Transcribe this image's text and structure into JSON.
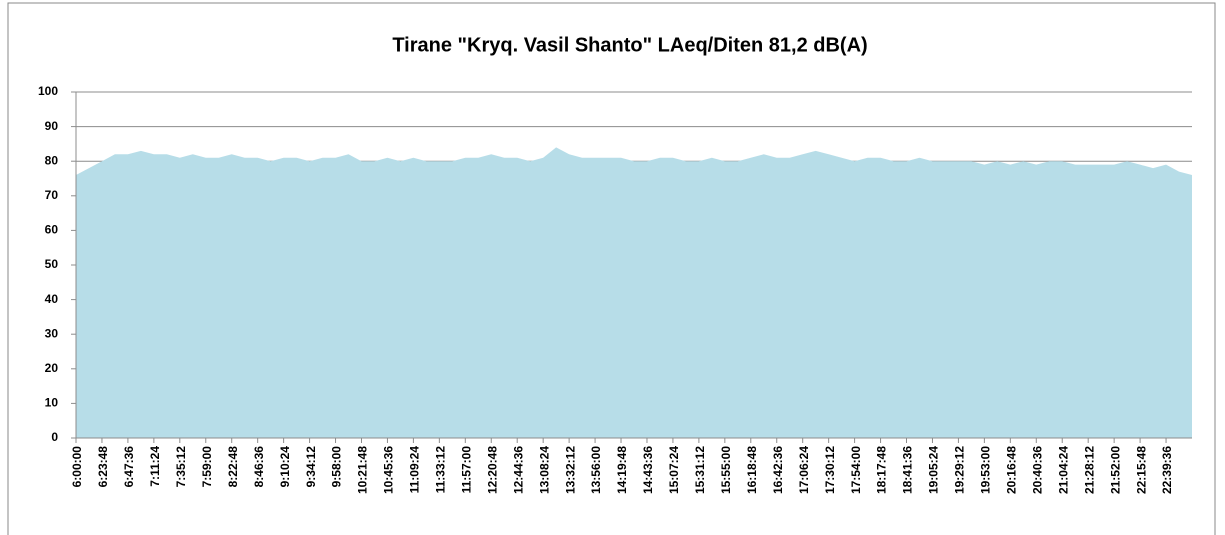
{
  "chart_data": {
    "type": "area",
    "title": "Tirane \"Kryq. Vasil Shanto\" LAeq/Diten 81,2 dB(A)",
    "categories": [
      "6:00:00",
      null,
      "6:23:48",
      null,
      "6:47:36",
      null,
      "7:11:24",
      null,
      "7:35:12",
      null,
      "7:59:00",
      null,
      "8:22:48",
      null,
      "8:46:36",
      null,
      "9:10:24",
      null,
      "9:34:12",
      null,
      "9:58:00",
      null,
      "10:21:48",
      null,
      "10:45:36",
      null,
      "11:09:24",
      null,
      "11:33:12",
      null,
      "11:57:00",
      null,
      "12:20:48",
      null,
      "12:44:36",
      null,
      "13:08:24",
      null,
      "13:32:12",
      null,
      "13:56:00",
      null,
      "14:19:48",
      null,
      "14:43:36",
      null,
      "15:07:24",
      null,
      "15:31:12",
      null,
      "15:55:00",
      null,
      "16:18:48",
      null,
      "16:42:36",
      null,
      "17:06:24",
      null,
      "17:30:12",
      null,
      "17:54:00",
      null,
      "18:17:48",
      null,
      "18:41:36",
      null,
      "19:05:24",
      null,
      "19:29:12",
      null,
      "19:53:00",
      null,
      "20:16:48",
      null,
      "20:40:36",
      null,
      "21:04:24",
      null,
      "21:28:12",
      null,
      "21:52:00",
      null,
      "22:15:48",
      null,
      "22:39:36",
      null,
      null
    ],
    "values": [
      76,
      78,
      80,
      82,
      82,
      83,
      82,
      82,
      81,
      82,
      81,
      81,
      82,
      81,
      81,
      80,
      81,
      81,
      80,
      81,
      81,
      82,
      80,
      80,
      81,
      80,
      81,
      80,
      80,
      80,
      81,
      81,
      82,
      81,
      81,
      80,
      81,
      84,
      82,
      81,
      81,
      81,
      81,
      80,
      80,
      81,
      81,
      80,
      80,
      81,
      80,
      80,
      81,
      82,
      81,
      81,
      82,
      83,
      82,
      81,
      80,
      81,
      81,
      80,
      80,
      81,
      80,
      80,
      80,
      80,
      79,
      80,
      79,
      80,
      79,
      80,
      80,
      79,
      79,
      79,
      79,
      80,
      79,
      78,
      79,
      77,
      76
    ],
    "color": "#b7dde8",
    "ylim": [
      0,
      100
    ],
    "yticks": [
      0,
      10,
      20,
      30,
      40,
      50,
      60,
      70,
      80,
      90,
      100
    ],
    "grid": true
  }
}
